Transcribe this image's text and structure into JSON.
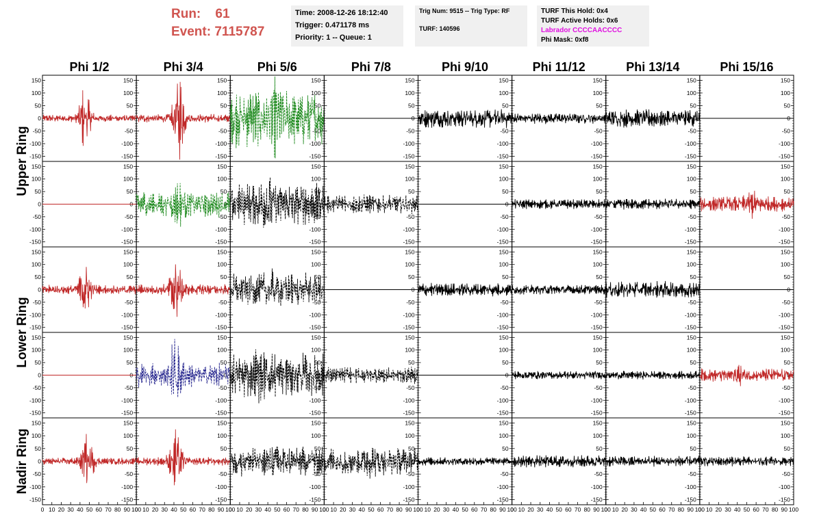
{
  "header": {
    "run_label": "Run:",
    "run_value": "61",
    "event_label": "Event:",
    "event_value": "7115787",
    "time": "Time: 2008-12-26 18:12:40",
    "trigger": "Trigger: 0.471178 ms",
    "priority": "Priority: 1 -- Queue: 1",
    "trig_num": "Trig Num: 9515 -- Trig Type: RF",
    "turf": "TURF: 140596",
    "turf_hold": "TURF This Hold: 0x4",
    "turf_active": "TURF Active Holds: 0x6",
    "labrador": "Labrador CCCCAACCCC",
    "phi_mask": "Phi Mask: 0xf8"
  },
  "colors": {
    "run_text": "#d0544f",
    "labrador_text": "#e010e0",
    "red_trace": "#c02828",
    "green_trace": "#1e8a1e",
    "blue_trace": "#2a2a90",
    "black_trace": "#000000"
  },
  "chart_data": {
    "type": "line",
    "columns": [
      "Phi 1/2",
      "Phi 3/4",
      "Phi 5/6",
      "Phi 7/8",
      "Phi 9/10",
      "Phi 11/12",
      "Phi 13/14",
      "Phi 15/16"
    ],
    "ring_labels": [
      "Upper Ring",
      "Lower Ring",
      "Nadir Ring"
    ],
    "xlim": [
      0,
      100
    ],
    "ylim": [
      -170,
      170
    ],
    "x_ticks": [
      "0",
      "10",
      "20",
      "30",
      "40",
      "50",
      "60",
      "70",
      "80",
      "90",
      "100"
    ],
    "y_ticks": [
      "150",
      "100",
      "50",
      "0",
      "-50",
      "-100",
      "-150"
    ],
    "panels": [
      [
        {
          "color": "red",
          "style": "solid",
          "amp": 12,
          "burst": 95,
          "center": 45
        },
        {
          "color": "red",
          "style": "solid",
          "amp": 14,
          "burst": 140,
          "center": 45
        },
        {
          "color": "green",
          "style": "dashed",
          "amp": 95,
          "burst": 60,
          "center": 50
        },
        {
          "color": "flat",
          "style": "solid",
          "amp": 0,
          "burst": 0,
          "center": 50
        },
        {
          "color": "black",
          "style": "solid",
          "amp": 32,
          "burst": 0,
          "center": 50
        },
        {
          "color": "black",
          "style": "solid",
          "amp": 18,
          "burst": 0,
          "center": 50
        },
        {
          "color": "black",
          "style": "solid",
          "amp": 30,
          "burst": 0,
          "center": 50
        },
        {
          "color": "flat",
          "style": "solid",
          "amp": 0,
          "burst": 0,
          "center": 50
        }
      ],
      [
        {
          "color": "flat_red",
          "style": "solid",
          "amp": 0,
          "burst": 0,
          "center": 50
        },
        {
          "color": "green",
          "style": "dashed",
          "amp": 45,
          "burst": 35,
          "center": 45
        },
        {
          "color": "black",
          "style": "dashed",
          "amp": 70,
          "burst": 35,
          "center": 40
        },
        {
          "color": "black",
          "style": "dashed",
          "amp": 32,
          "burst": 0,
          "center": 50
        },
        {
          "color": "flat",
          "style": "solid",
          "amp": 0,
          "burst": 0,
          "center": 50
        },
        {
          "color": "black",
          "style": "solid",
          "amp": 16,
          "burst": 0,
          "center": 50
        },
        {
          "color": "black",
          "style": "solid",
          "amp": 18,
          "burst": 0,
          "center": 50
        },
        {
          "color": "red",
          "style": "solid",
          "amp": 26,
          "burst": 25,
          "center": 55
        }
      ],
      [
        {
          "color": "red",
          "style": "solid",
          "amp": 16,
          "burst": 80,
          "center": 45
        },
        {
          "color": "red",
          "style": "solid",
          "amp": 18,
          "burst": 100,
          "center": 42
        },
        {
          "color": "black",
          "style": "dashed",
          "amp": 55,
          "burst": 25,
          "center": 40
        },
        {
          "color": "flat",
          "style": "solid",
          "amp": 0,
          "burst": 0,
          "center": 50
        },
        {
          "color": "black",
          "style": "solid",
          "amp": 22,
          "burst": 0,
          "center": 50
        },
        {
          "color": "black",
          "style": "solid",
          "amp": 16,
          "burst": 0,
          "center": 50
        },
        {
          "color": "black",
          "style": "solid",
          "amp": 28,
          "burst": 0,
          "center": 50
        },
        {
          "color": "flat",
          "style": "solid",
          "amp": 0,
          "burst": 0,
          "center": 50
        }
      ],
      [
        {
          "color": "flat_red",
          "style": "solid",
          "amp": 0,
          "burst": 0,
          "center": 50
        },
        {
          "color": "blue",
          "style": "dashed",
          "amp": 40,
          "burst": 95,
          "center": 42
        },
        {
          "color": "black",
          "style": "dashed",
          "amp": 75,
          "burst": 20,
          "center": 30
        },
        {
          "color": "black",
          "style": "dashed",
          "amp": 28,
          "burst": 0,
          "center": 50
        },
        {
          "color": "flat",
          "style": "solid",
          "amp": 0,
          "burst": 0,
          "center": 50
        },
        {
          "color": "black",
          "style": "solid",
          "amp": 14,
          "burst": 0,
          "center": 50
        },
        {
          "color": "black",
          "style": "solid",
          "amp": 14,
          "burst": 0,
          "center": 50
        },
        {
          "color": "red",
          "style": "solid",
          "amp": 22,
          "burst": 20,
          "center": 40
        }
      ],
      [
        {
          "color": "red",
          "style": "solid",
          "amp": 12,
          "burst": 90,
          "center": 48
        },
        {
          "color": "red",
          "style": "solid",
          "amp": 14,
          "burst": 110,
          "center": 42
        },
        {
          "color": "black",
          "style": "dashed",
          "amp": 48,
          "burst": 20,
          "center": 50
        },
        {
          "color": "black",
          "style": "dashed",
          "amp": 45,
          "burst": 10,
          "center": 50
        },
        {
          "color": "black",
          "style": "solid",
          "amp": 14,
          "burst": 0,
          "center": 50
        },
        {
          "color": "black",
          "style": "solid",
          "amp": 20,
          "burst": 0,
          "center": 50
        },
        {
          "color": "black",
          "style": "solid",
          "amp": 18,
          "burst": 0,
          "center": 50
        },
        {
          "color": "black",
          "style": "solid",
          "amp": 16,
          "burst": 0,
          "center": 50
        }
      ]
    ]
  }
}
